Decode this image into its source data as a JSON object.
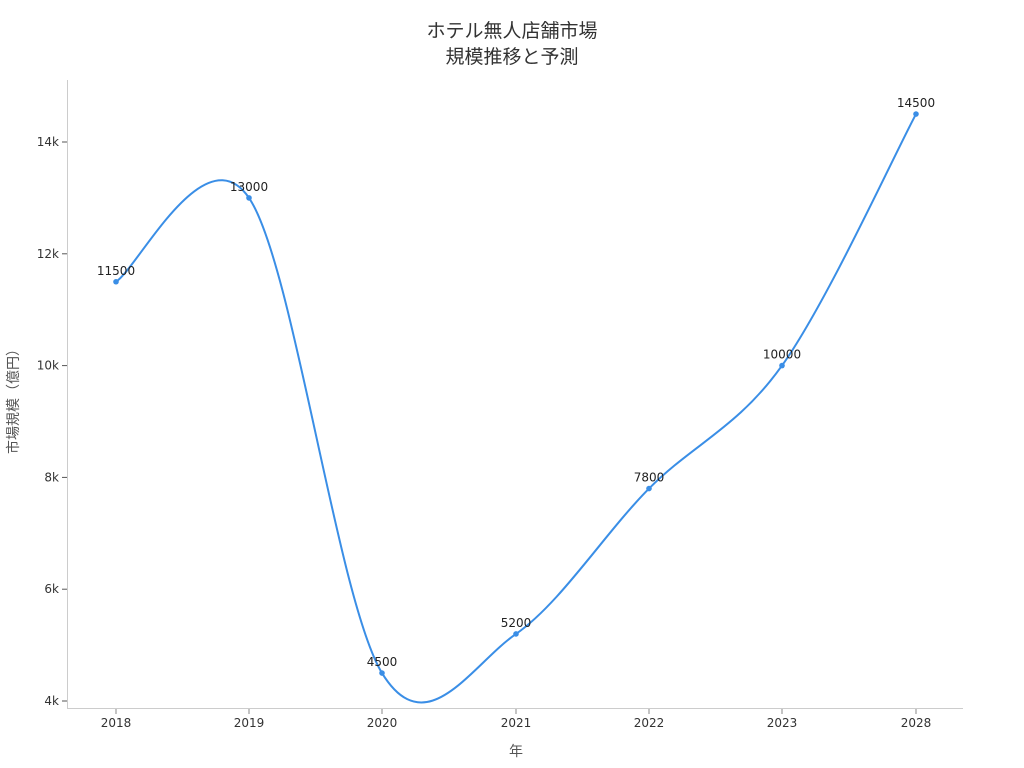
{
  "chart": {
    "title_line1": "ホテル無人店舗市場",
    "title_line2": "規模推移と予測",
    "xlabel": "年",
    "ylabel": "市場規模（億円）",
    "line_color": "#3a8ee6",
    "axis_color": "#cccccc"
  },
  "chart_data": {
    "type": "line",
    "title": "ホテル無人店舗市場 規模推移と予測",
    "xlabel": "年",
    "ylabel": "市場規模（億円）",
    "categories": [
      "2018",
      "2019",
      "2020",
      "2021",
      "2022",
      "2023",
      "2028"
    ],
    "series": [
      {
        "name": "市場規模",
        "values": [
          11500,
          13000,
          4500,
          5200,
          7800,
          10000,
          14500
        ]
      }
    ],
    "data_labels": [
      "11500",
      "13000",
      "4500",
      "5200",
      "7800",
      "10000",
      "14500"
    ],
    "y_ticks": [
      "4k",
      "6k",
      "8k",
      "10k",
      "12k",
      "14k"
    ],
    "ylim": [
      3900,
      15100
    ],
    "smooth": true,
    "grid": false,
    "legend": "none"
  }
}
